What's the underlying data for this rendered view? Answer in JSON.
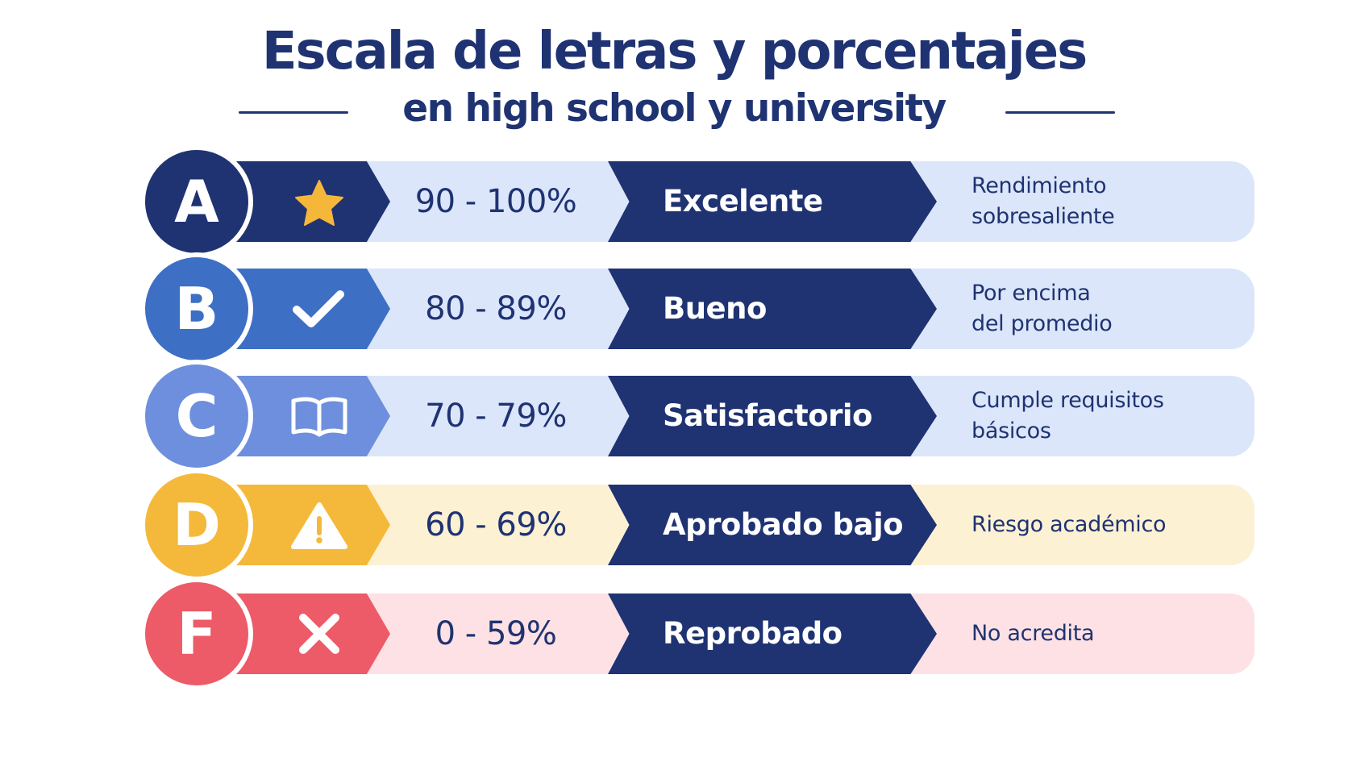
{
  "header": {
    "title": "Escala de letras y porcentajes",
    "subtitle": "en high school y university"
  },
  "colors": {
    "navy": "#1f3372",
    "white": "#ffffff"
  },
  "grades": [
    {
      "letter": "A",
      "icon": "star-icon",
      "range": "90 - 100%",
      "label": "Excelente",
      "description": [
        "Rendimiento",
        "sobresaliente"
      ],
      "badge_color": "#1f3372",
      "icon_bg": "#1f3372",
      "icon_fg": "#f5b73a",
      "row_bg": "#dbe6fa"
    },
    {
      "letter": "B",
      "icon": "check-icon",
      "range": "80 - 89%",
      "label": "Bueno",
      "description": [
        "Por encima",
        "del promedio"
      ],
      "badge_color": "#3d6fc4",
      "icon_bg": "#3d6fc4",
      "icon_fg": "#ffffff",
      "row_bg": "#dbe6fa"
    },
    {
      "letter": "C",
      "icon": "book-icon",
      "range": "70 - 79%",
      "label": "Satisfactorio",
      "description": [
        "Cumple requisitos",
        "básicos"
      ],
      "badge_color": "#6e8fdd",
      "icon_bg": "#6e8fdd",
      "icon_fg": "#ffffff",
      "row_bg": "#dbe6fa"
    },
    {
      "letter": "D",
      "icon": "warning-icon",
      "range": "60 - 69%",
      "label": "Aprobado bajo",
      "description": [
        "Riesgo académico"
      ],
      "badge_color": "#f4b93a",
      "icon_bg": "#f4b93a",
      "icon_fg": "#ffffff",
      "row_bg": "#fdf1d4"
    },
    {
      "letter": "F",
      "icon": "x-icon",
      "range": "0 - 59%",
      "label": "Reprobado",
      "description": [
        "No acredita"
      ],
      "badge_color": "#ec5b67",
      "icon_bg": "#ec5b67",
      "icon_fg": "#ffffff",
      "row_bg": "#fde1e4"
    }
  ]
}
